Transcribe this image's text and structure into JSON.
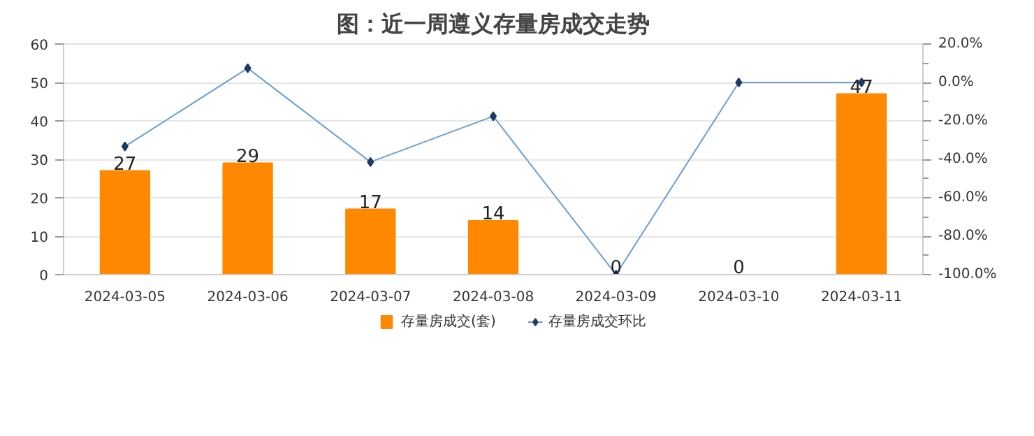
{
  "chart_data": {
    "type": "bar",
    "title": "图：近一周遵义存量房成交走势",
    "categories": [
      "2024-03-05",
      "2024-03-06",
      "2024-03-07",
      "2024-03-08",
      "2024-03-09",
      "2024-03-10",
      "2024-03-11"
    ],
    "series": [
      {
        "name": "存量房成交(套)",
        "color": "#ff8800",
        "values": [
          27,
          29,
          17,
          14,
          0,
          0,
          47
        ],
        "data_labels": true
      },
      {
        "name": "存量房成交环比",
        "type": "line",
        "axis": "y2",
        "color": "#6a9fd4",
        "marker": "diamond",
        "values": [
          -33.3,
          7.4,
          -41.4,
          -17.6,
          -100,
          0,
          0
        ]
      }
    ],
    "ylim": [
      0,
      60
    ],
    "yticks": [
      0,
      10,
      20,
      30,
      40,
      50,
      60
    ],
    "y2lim": [
      -100,
      20
    ],
    "y2ticks": [
      {
        "value": -100,
        "label": "-100.0%"
      },
      {
        "value": -90,
        "label": null
      },
      {
        "value": -80,
        "label": "-80.0%"
      },
      {
        "value": -70,
        "label": null
      },
      {
        "value": -60,
        "label": "-60.0%"
      },
      {
        "value": -50,
        "label": null
      },
      {
        "value": -40,
        "label": "-40.0%"
      },
      {
        "value": -30,
        "label": null
      },
      {
        "value": -20,
        "label": "-20.0%"
      },
      {
        "value": -10,
        "label": null
      },
      {
        "value": 0,
        "label": "0.0%"
      },
      {
        "value": 10,
        "label": null
      },
      {
        "value": 20,
        "label": "20.0%"
      }
    ],
    "grid": "y",
    "legend": "bottom"
  }
}
